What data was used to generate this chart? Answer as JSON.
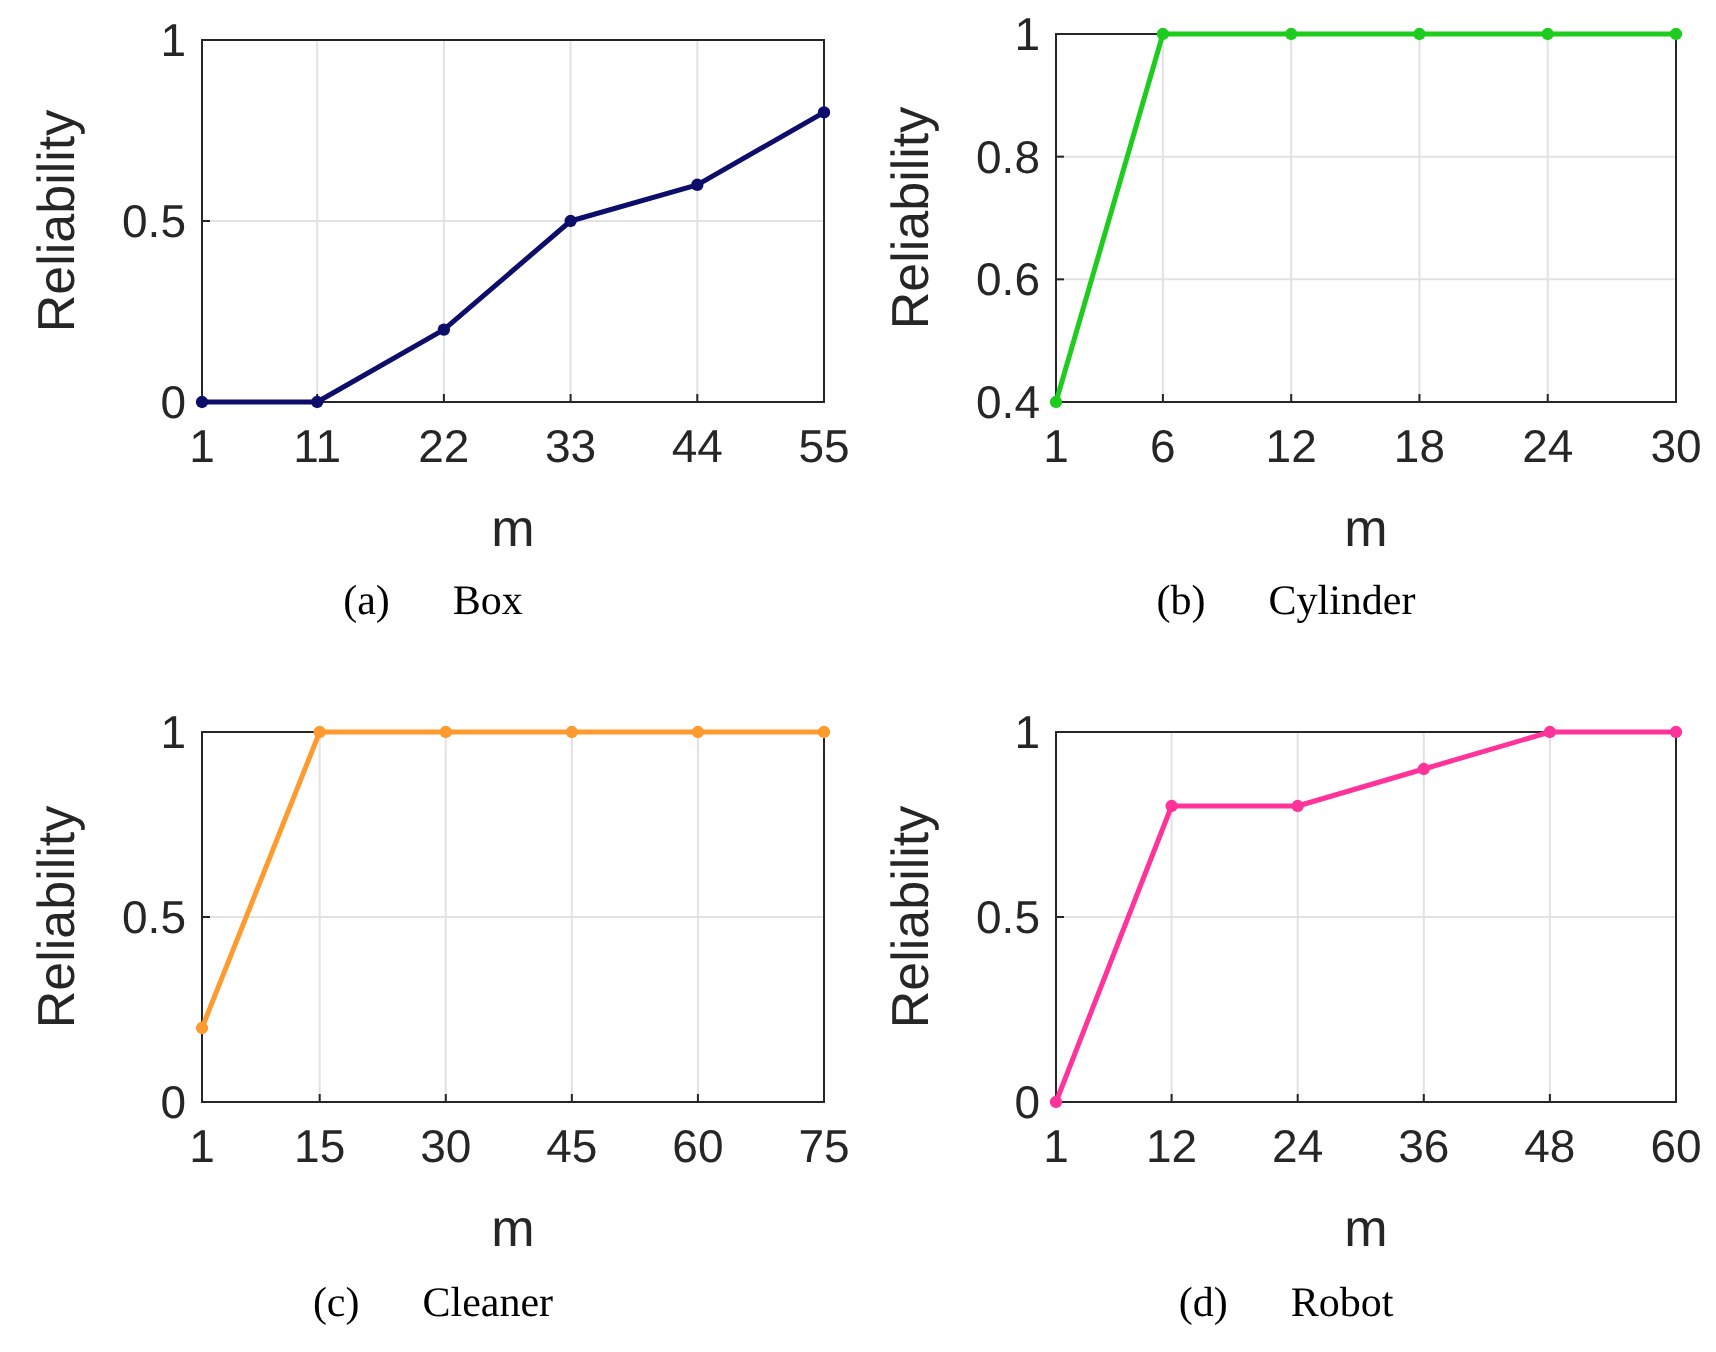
{
  "chart_data": [
    {
      "type": "line",
      "title": "(a)      Box",
      "xlabel": "m",
      "ylabel": "Reliability",
      "x": [
        1,
        11,
        22,
        33,
        44,
        55
      ],
      "xlim": [
        1,
        55
      ],
      "xticks": [
        1,
        11,
        22,
        33,
        44,
        55
      ],
      "ylim": [
        0,
        1
      ],
      "yticks": [
        0,
        0.5,
        1
      ],
      "grid": true,
      "marker": "circle",
      "series": [
        {
          "color": "#0d0d6b",
          "values": [
            0,
            0,
            0.2,
            0.5,
            0.6,
            0.8
          ]
        }
      ]
    },
    {
      "type": "line",
      "title": "(b)      Cylinder",
      "xlabel": "m",
      "ylabel": "Reliability",
      "x": [
        1,
        6,
        12,
        18,
        24,
        30
      ],
      "xlim": [
        1,
        30
      ],
      "xticks": [
        1,
        6,
        12,
        18,
        24,
        30
      ],
      "ylim": [
        0.4,
        1
      ],
      "yticks": [
        0.4,
        0.6,
        0.8,
        1
      ],
      "grid": true,
      "marker": "circle",
      "series": [
        {
          "color": "#1ecc1e",
          "values": [
            0.4,
            1,
            1,
            1,
            1,
            1
          ]
        }
      ]
    },
    {
      "type": "line",
      "title": "(c)      Cleaner",
      "xlabel": "m",
      "ylabel": "Reliability",
      "x": [
        1,
        15,
        30,
        45,
        60,
        75
      ],
      "xlim": [
        1,
        75
      ],
      "xticks": [
        1,
        15,
        30,
        45,
        60,
        75
      ],
      "ylim": [
        0,
        1
      ],
      "yticks": [
        0,
        0.5,
        1
      ],
      "grid": true,
      "marker": "circle",
      "series": [
        {
          "color": "#ff9a2e",
          "values": [
            0.2,
            1,
            1,
            1,
            1,
            1
          ]
        }
      ]
    },
    {
      "type": "line",
      "title": "(d)      Robot",
      "xlabel": "m",
      "ylabel": "Reliability",
      "x": [
        1,
        12,
        24,
        36,
        48,
        60
      ],
      "xlim": [
        1,
        60
      ],
      "xticks": [
        1,
        12,
        24,
        36,
        48,
        60
      ],
      "ylim": [
        0,
        1
      ],
      "yticks": [
        0,
        0.5,
        1
      ],
      "grid": true,
      "marker": "circle",
      "series": [
        {
          "color": "#ff3399",
          "values": [
            0,
            0.8,
            0.8,
            0.9,
            1,
            1
          ]
        }
      ]
    }
  ]
}
